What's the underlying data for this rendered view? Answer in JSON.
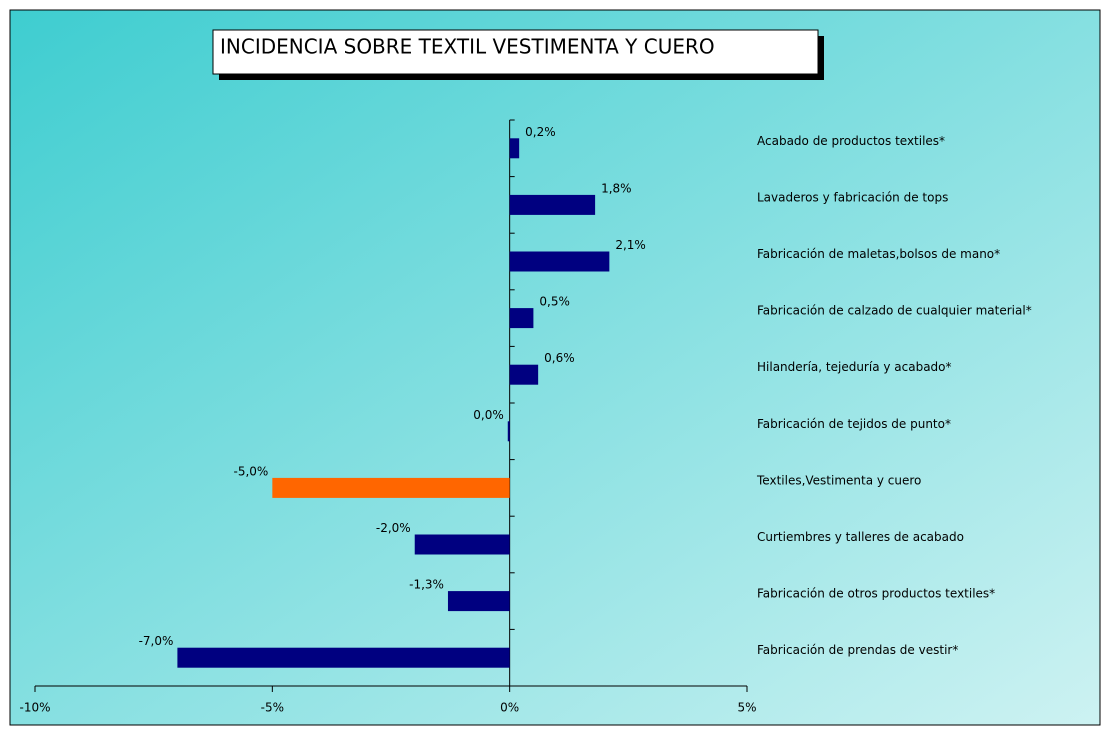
{
  "chart_data": {
    "type": "bar",
    "orientation": "horizontal",
    "title": "INCIDENCIA SOBRE TEXTIL VESTIMENTA Y CUERO",
    "categories": [
      "Acabado de productos textiles*",
      "Lavaderos y fabricación de tops",
      "Fabricación de maletas,bolsos de mano*",
      "Fabricación de calzado de cualquier material*",
      "Hilandería, tejeduría y acabado*",
      "Fabricación de tejidos de punto*",
      "Textiles,Vestimenta y cuero",
      "Curtiembres y talleres de acabado",
      "Fabricación de otros productos textiles*",
      "Fabricación de prendas de vestir*"
    ],
    "values": [
      0.2,
      1.8,
      2.1,
      0.5,
      0.6,
      -0.04,
      -5.0,
      -2.0,
      -1.3,
      -7.0
    ],
    "value_labels": [
      "0,2%",
      "1,8%",
      "2,1%",
      "0,5%",
      "0,6%",
      "0,0%",
      "-5,0%",
      "-2,0%",
      "-1,3%",
      "-7,0%"
    ],
    "colors": [
      "#000080",
      "#000080",
      "#000080",
      "#000080",
      "#000080",
      "#000080",
      "#ff6600",
      "#000080",
      "#000080",
      "#000080"
    ],
    "xlim": [
      -10,
      5
    ],
    "xticks": [
      {
        "value": -10,
        "label": "-10%"
      },
      {
        "value": -5,
        "label": "-5%"
      },
      {
        "value": 0,
        "label": "0%"
      },
      {
        "value": 5,
        "label": "5%"
      }
    ]
  }
}
